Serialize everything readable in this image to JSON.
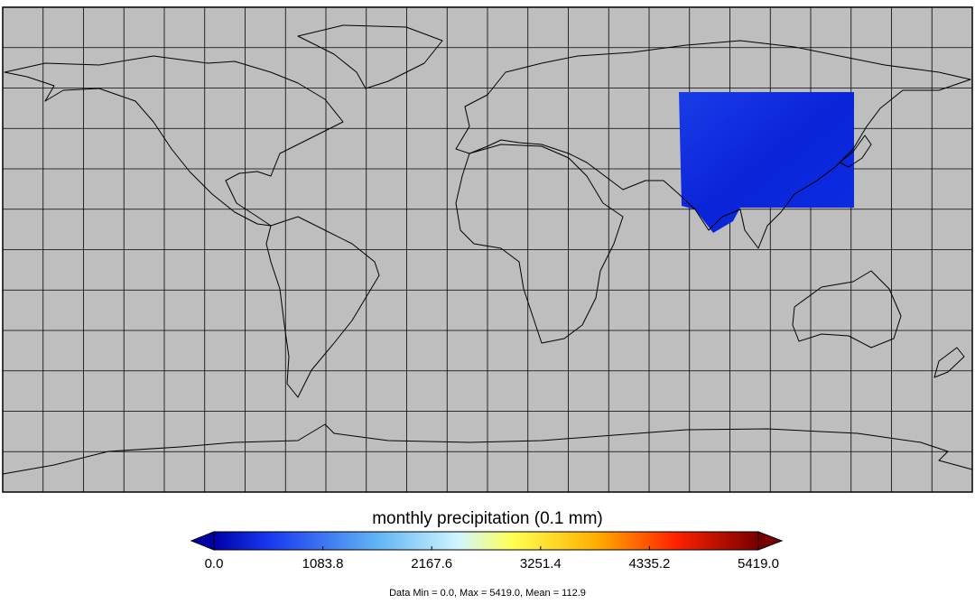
{
  "colorbar": {
    "title": "monthly precipitation (0.1 mm)",
    "range": [
      0,
      5419
    ],
    "ticks": [
      {
        "value": 0,
        "label": "0.0"
      },
      1083.8,
      2167.6,
      3251.4,
      4335.2,
      {
        "value": 5419,
        "label": "5419.0"
      }
    ]
  },
  "footer": "Data Min = 0.0, Max = 5419.0, Mean = 112.9"
}
